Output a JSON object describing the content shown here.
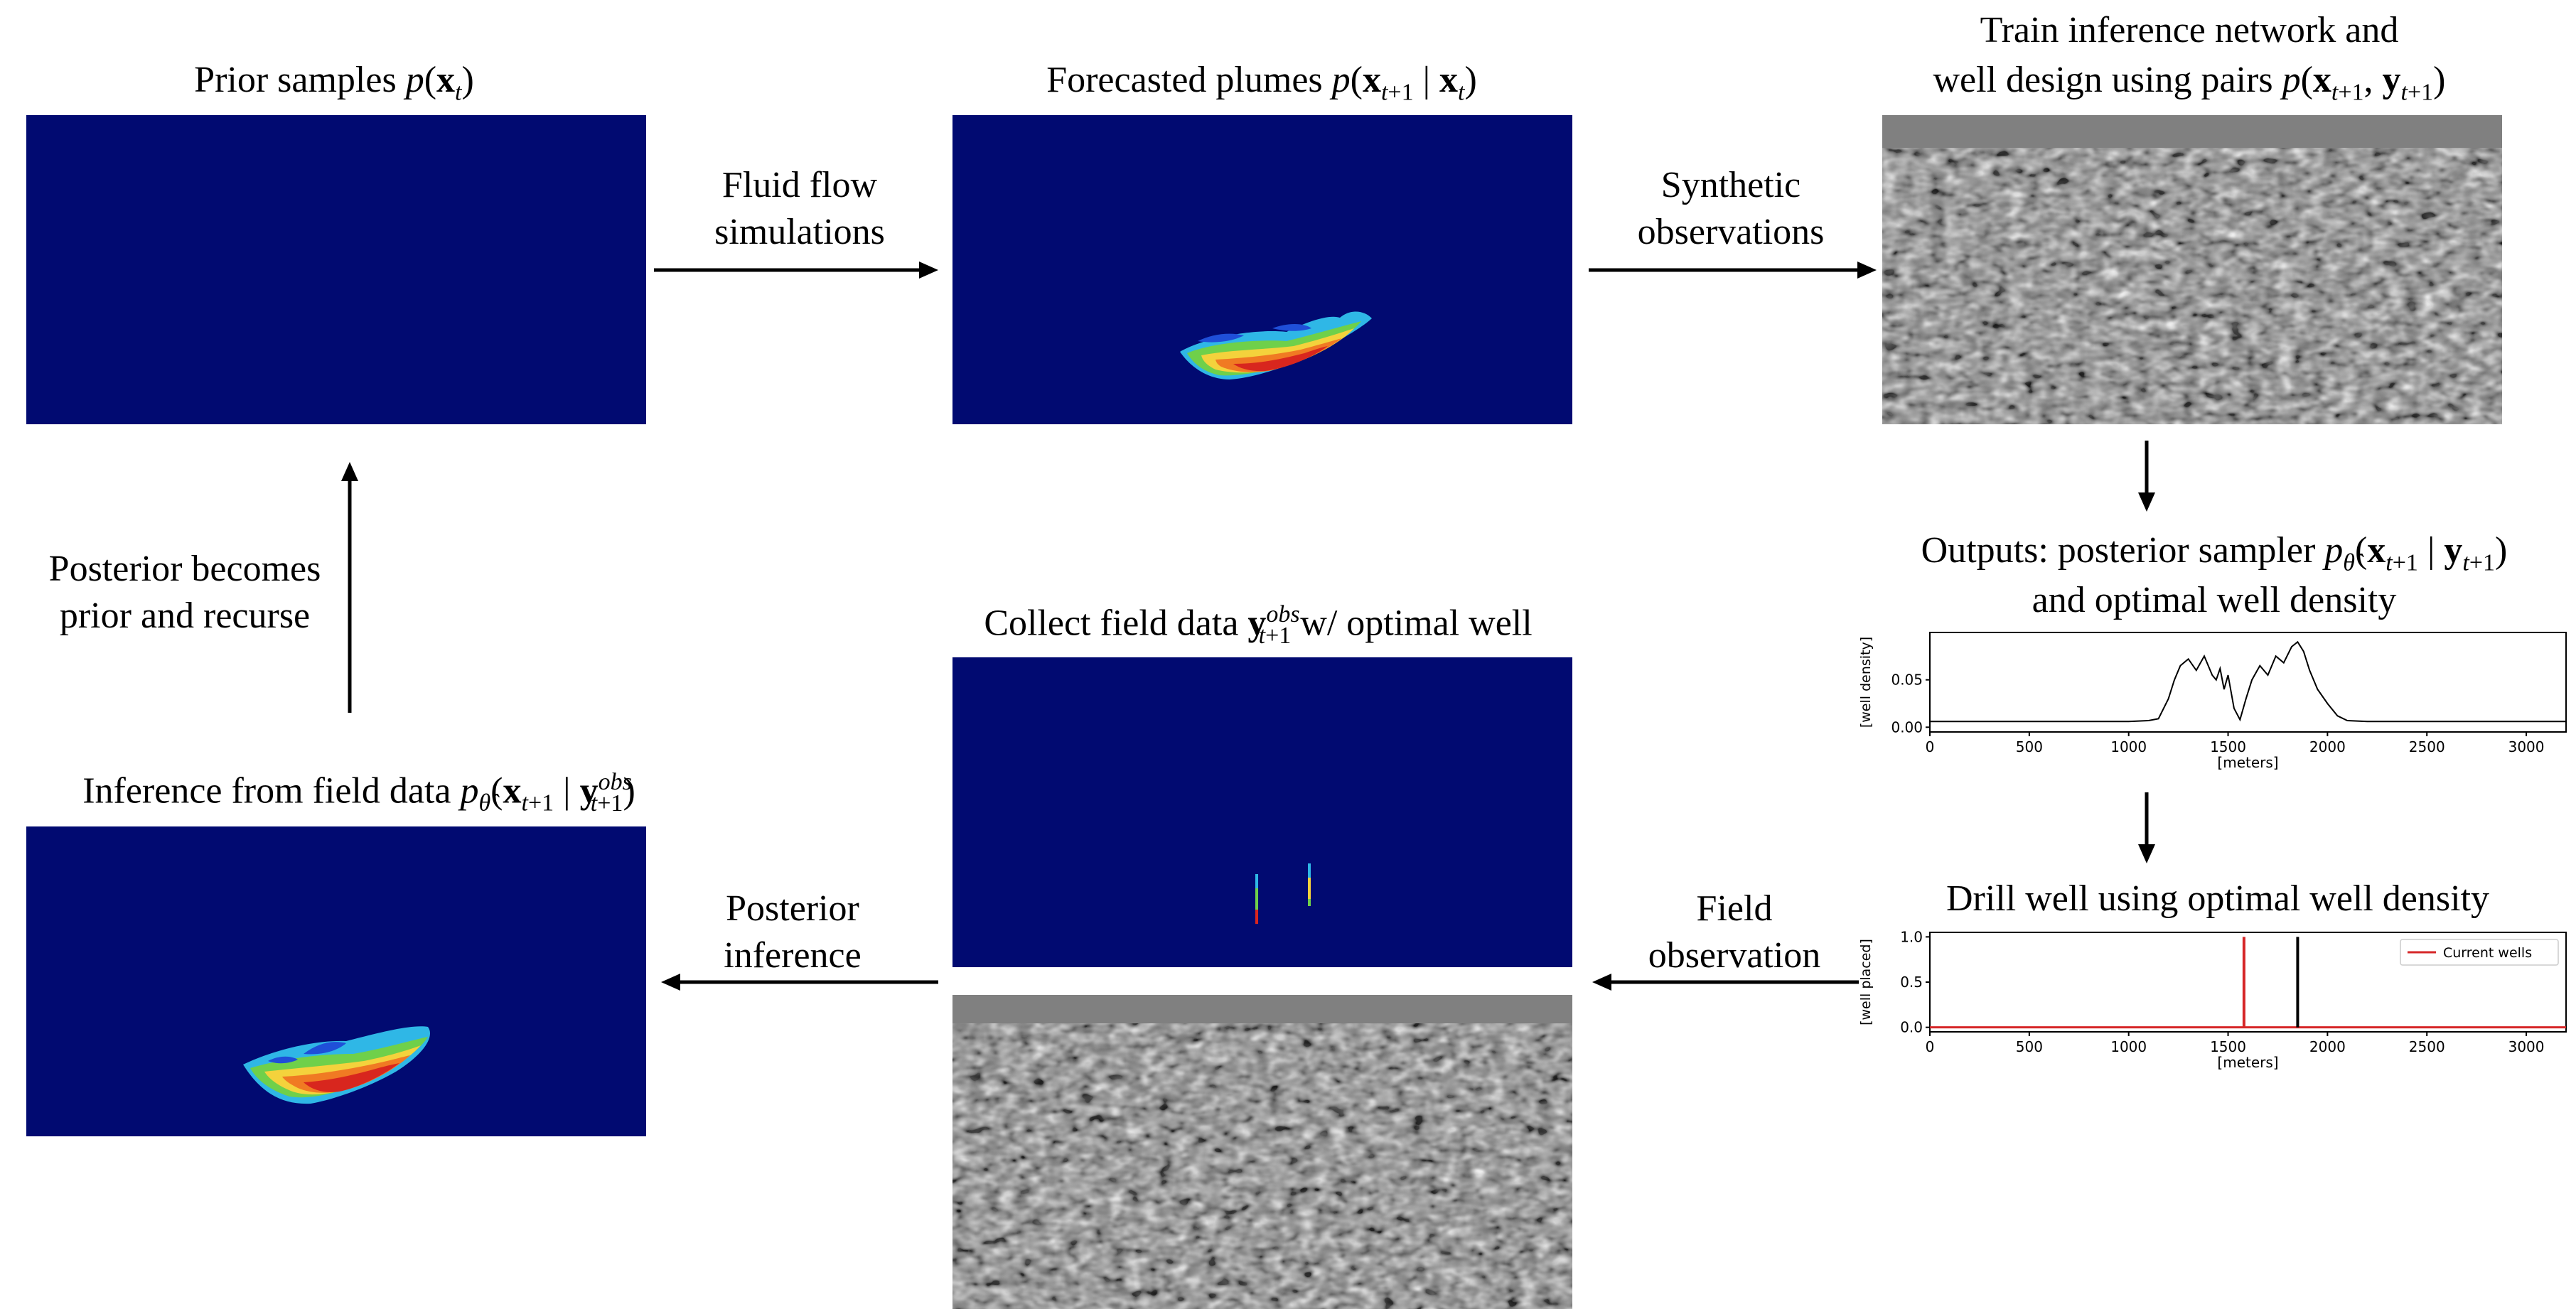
{
  "titles": {
    "prior": {
      "text": "Prior samples ",
      "math": "p(x_t)"
    },
    "forecast": {
      "text": "Forecasted plumes ",
      "math": "p(x_{t+1} | x_t)"
    },
    "train_line1": "Train inference network and",
    "train_line2": {
      "text": "well design using pairs ",
      "math": "p(x_{t+1}, y_{t+1})"
    },
    "outputs_line1": {
      "text": "Outputs: posterior sampler ",
      "math": "p_θ̂(x_{t+1} | y_{t+1})"
    },
    "outputs_line2": "and optimal well density",
    "collect": {
      "text": "Collect field data ",
      "math": "y^{obs}_{t+1}",
      "suffix": " w/ optimal well"
    },
    "inference": {
      "text": "Inference from field data ",
      "math": "p_θ̂(x_{t+1} | y^{obs}_{t+1})"
    },
    "drill": "Drill well using optimal well density"
  },
  "arrow_labels": {
    "fluid_flow": [
      "Fluid flow",
      "simulations"
    ],
    "synthetic": [
      "Synthetic",
      "observations"
    ],
    "posterior_becomes": [
      "Posterior becomes",
      "prior and recurse"
    ],
    "posterior_inference": [
      "Posterior",
      "inference"
    ],
    "field_observation": [
      "Field",
      "observation"
    ]
  },
  "colors": {
    "background_field": "#010a71",
    "plot_line": "#000000",
    "current_wells": "#d62728"
  },
  "chart_data": [
    {
      "type": "line",
      "name": "well-density-plot",
      "ylabel": "[well density]",
      "xlabel": "[meters]",
      "xticks": [
        0,
        500,
        1000,
        1500,
        2000,
        2500,
        3000
      ],
      "yticks": [
        "0.00",
        "0.05"
      ],
      "xlim": [
        0,
        3200
      ],
      "ylim": [
        -0.005,
        0.1
      ],
      "x": [
        0,
        1000,
        1100,
        1150,
        1200,
        1230,
        1260,
        1300,
        1340,
        1380,
        1420,
        1440,
        1460,
        1480,
        1500,
        1530,
        1560,
        1590,
        1620,
        1660,
        1700,
        1740,
        1780,
        1820,
        1850,
        1880,
        1910,
        1950,
        2000,
        2050,
        2100,
        2200,
        3200
      ],
      "y": [
        0.006,
        0.006,
        0.007,
        0.009,
        0.03,
        0.05,
        0.065,
        0.072,
        0.06,
        0.075,
        0.055,
        0.05,
        0.062,
        0.04,
        0.055,
        0.02,
        0.008,
        0.03,
        0.05,
        0.065,
        0.055,
        0.075,
        0.068,
        0.085,
        0.09,
        0.08,
        0.06,
        0.04,
        0.025,
        0.012,
        0.007,
        0.006,
        0.006
      ]
    },
    {
      "type": "line",
      "name": "well-placed-plot",
      "ylabel": "[well placed]",
      "xlabel": "[meters]",
      "xticks": [
        0,
        500,
        1000,
        1500,
        2000,
        2500,
        3000
      ],
      "yticks": [
        "0.0",
        "0.5",
        "1.0"
      ],
      "xlim": [
        0,
        3200
      ],
      "ylim": [
        -0.05,
        1.05
      ],
      "legend": "Current wells",
      "legend_position": "top-right",
      "current_wells_x": [
        1580
      ],
      "optimal_well_x": [
        1850
      ]
    }
  ]
}
